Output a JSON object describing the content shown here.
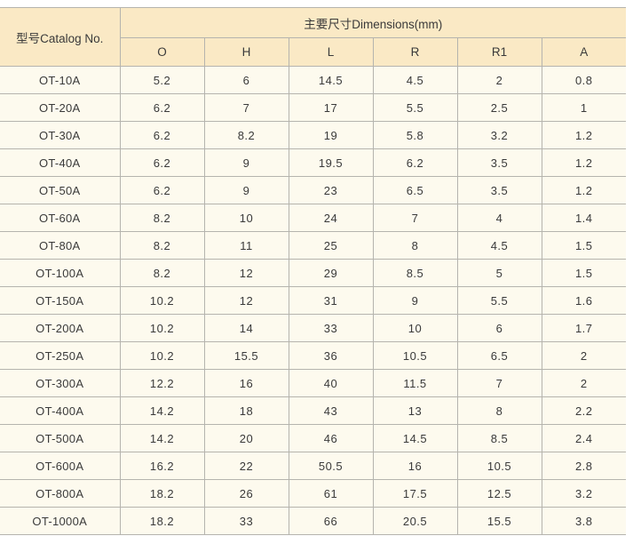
{
  "colors": {
    "header_bg": "#fae9c5",
    "body_bg": "#fdfaee",
    "grid_line": "#b5b4ae",
    "text": "#3a3a3a",
    "page_bg": "#ffffff"
  },
  "table": {
    "catalog_header": "型号Catalog No.",
    "dimensions_header": "主要尺寸Dimensions(mm)",
    "columns": [
      "O",
      "H",
      "L",
      "R",
      "R1",
      "A"
    ],
    "rows": [
      {
        "model": "OT-10A",
        "values": [
          "5.2",
          "6",
          "14.5",
          "4.5",
          "2",
          "0.8"
        ]
      },
      {
        "model": "OT-20A",
        "values": [
          "6.2",
          "7",
          "17",
          "5.5",
          "2.5",
          "1"
        ]
      },
      {
        "model": "OT-30A",
        "values": [
          "6.2",
          "8.2",
          "19",
          "5.8",
          "3.2",
          "1.2"
        ]
      },
      {
        "model": "OT-40A",
        "values": [
          "6.2",
          "9",
          "19.5",
          "6.2",
          "3.5",
          "1.2"
        ]
      },
      {
        "model": "OT-50A",
        "values": [
          "6.2",
          "9",
          "23",
          "6.5",
          "3.5",
          "1.2"
        ]
      },
      {
        "model": "OT-60A",
        "values": [
          "8.2",
          "10",
          "24",
          "7",
          "4",
          "1.4"
        ]
      },
      {
        "model": "OT-80A",
        "values": [
          "8.2",
          "11",
          "25",
          "8",
          "4.5",
          "1.5"
        ]
      },
      {
        "model": "OT-100A",
        "values": [
          "8.2",
          "12",
          "29",
          "8.5",
          "5",
          "1.5"
        ]
      },
      {
        "model": "OT-150A",
        "values": [
          "10.2",
          "12",
          "31",
          "9",
          "5.5",
          "1.6"
        ]
      },
      {
        "model": "OT-200A",
        "values": [
          "10.2",
          "14",
          "33",
          "10",
          "6",
          "1.7"
        ]
      },
      {
        "model": "OT-250A",
        "values": [
          "10.2",
          "15.5",
          "36",
          "10.5",
          "6.5",
          "2"
        ]
      },
      {
        "model": "OT-300A",
        "values": [
          "12.2",
          "16",
          "40",
          "11.5",
          "7",
          "2"
        ]
      },
      {
        "model": "OT-400A",
        "values": [
          "14.2",
          "18",
          "43",
          "13",
          "8",
          "2.2"
        ]
      },
      {
        "model": "OT-500A",
        "values": [
          "14.2",
          "20",
          "46",
          "14.5",
          "8.5",
          "2.4"
        ]
      },
      {
        "model": "OT-600A",
        "values": [
          "16.2",
          "22",
          "50.5",
          "16",
          "10.5",
          "2.8"
        ]
      },
      {
        "model": "OT-800A",
        "values": [
          "18.2",
          "26",
          "61",
          "17.5",
          "12.5",
          "3.2"
        ]
      },
      {
        "model": "OT-1000A",
        "values": [
          "18.2",
          "33",
          "66",
          "20.5",
          "15.5",
          "3.8"
        ]
      }
    ]
  }
}
